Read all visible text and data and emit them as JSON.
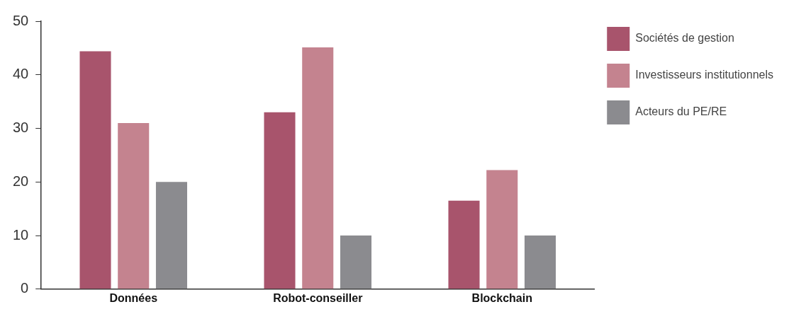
{
  "chart_data": {
    "type": "bar",
    "categories": [
      "Données",
      "Robot-conseiller",
      "Blockchain"
    ],
    "series": [
      {
        "name": "Sociétés de gestion",
        "color": "#a8546c",
        "values": [
          44.4,
          33,
          16.5
        ]
      },
      {
        "name": "Investisseurs institutionnels",
        "color": "#c4838f",
        "values": [
          31,
          45.1,
          22.2
        ]
      },
      {
        "name": "Acteurs du PE/RE",
        "color": "#8b8b8f",
        "values": [
          20,
          10,
          10
        ]
      }
    ],
    "ylim": [
      0,
      50
    ],
    "yticks": [
      0,
      10,
      20,
      30,
      40,
      50
    ],
    "grid": false,
    "legend": "right"
  }
}
